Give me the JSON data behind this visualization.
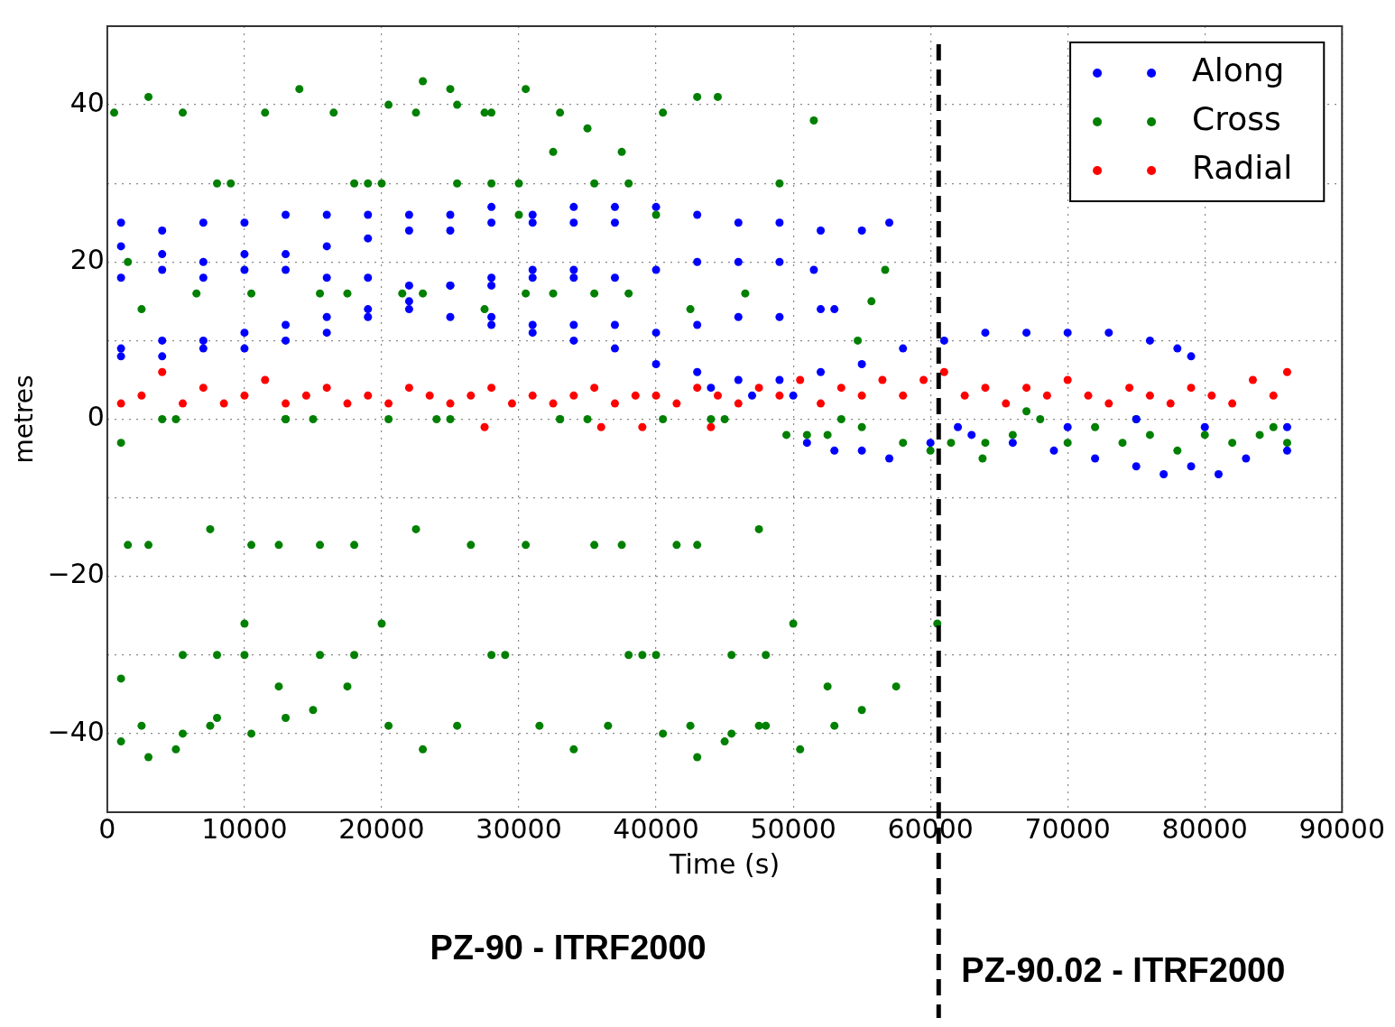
{
  "chart_data": {
    "type": "scatter",
    "xlabel": "Time (s)",
    "ylabel": "metres",
    "xlim": [
      0,
      90000
    ],
    "xticks": [
      0,
      10000,
      20000,
      30000,
      40000,
      50000,
      60000,
      70000,
      80000,
      90000
    ],
    "ylim": [
      -50,
      50
    ],
    "yticks": [
      {
        "value": -50,
        "label": null
      },
      -40,
      {
        "value": -30,
        "label": null
      },
      -20,
      {
        "value": -10,
        "label": null
      },
      0,
      {
        "value": 10,
        "label": null
      },
      20,
      {
        "value": 30,
        "label": null
      },
      40,
      {
        "value": 50,
        "label": null
      }
    ],
    "grid": true,
    "legend": "top right",
    "marker": "circle",
    "ref_lines": [
      {
        "axis": "x",
        "value": 60600,
        "color": "#000000",
        "line_style": "dashed"
      }
    ],
    "annotations": [
      "PZ-90 - ITRF2000",
      "PZ-90.02 - ITRF2000"
    ],
    "series": [
      {
        "name": "Along",
        "color": "#0000ff",
        "x": [
          1000,
          4000,
          7000,
          10000,
          13000,
          16000,
          19000,
          22000,
          25000,
          28000,
          31000,
          34000,
          37000,
          40000,
          43000,
          46000,
          49000,
          52000,
          55000,
          57000,
          1000,
          4000,
          7000,
          10000,
          13000,
          16000,
          19000,
          22000,
          25000,
          28000,
          31000,
          34000,
          37000,
          1000,
          4000,
          7000,
          10000,
          13000,
          16000,
          19000,
          22000,
          25000,
          28000,
          31000,
          34000,
          37000,
          40000,
          43000,
          46000,
          49000,
          51500,
          1000,
          4000,
          7000,
          10000,
          13000,
          16000,
          19000,
          22000,
          25000,
          28000,
          31000,
          34000,
          1000,
          4000,
          7000,
          10000,
          13000,
          16000,
          19000,
          22000,
          25000,
          28000,
          31000,
          34000,
          37000,
          40000,
          43000,
          46000,
          49000,
          52000,
          53000,
          28000,
          31000,
          34000,
          37000,
          40000,
          43000,
          46000,
          49000,
          52000,
          55000,
          58000,
          61000,
          64000,
          67000,
          70000,
          73000,
          76000,
          78000,
          79000,
          44000,
          47000,
          50000,
          51000,
          53000,
          55000,
          57000,
          60000,
          63000,
          66000,
          69000,
          72000,
          75000,
          77000,
          79000,
          81000,
          83000,
          86000,
          62000,
          70000,
          75000,
          80000,
          86000
        ],
        "values": [
          25,
          24,
          25,
          25,
          26,
          26,
          26,
          26,
          26,
          27,
          26,
          27,
          27,
          27,
          26,
          25,
          25,
          24,
          24,
          25,
          22,
          21,
          20,
          21,
          21,
          22,
          23,
          24,
          24,
          25,
          25,
          25,
          25,
          18,
          19,
          18,
          19,
          19,
          18,
          18,
          17,
          17,
          17,
          18,
          18,
          18,
          19,
          20,
          20,
          20,
          19,
          9,
          10,
          10,
          11,
          12,
          13,
          14,
          15,
          17,
          18,
          19,
          19,
          8,
          8,
          9,
          9,
          10,
          11,
          13,
          14,
          13,
          12,
          12,
          12,
          12,
          11,
          12,
          13,
          13,
          14,
          14,
          13,
          11,
          10,
          9,
          7,
          6,
          5,
          5,
          6,
          7,
          9,
          10,
          11,
          11,
          11,
          11,
          10,
          9,
          8,
          4,
          3,
          3,
          -3,
          -4,
          -4,
          -5,
          -3,
          -2,
          -3,
          -4,
          -5,
          -6,
          -7,
          -6,
          -7,
          -5,
          -4,
          -1,
          -1,
          0,
          -1,
          -1
        ]
      },
      {
        "name": "Cross",
        "color": "#008000",
        "x": [
          500,
          3000,
          5500,
          8000,
          10500,
          13000,
          15500,
          18000,
          20500,
          23000,
          25500,
          28000,
          30500,
          33000,
          35500,
          38000,
          40500,
          43000,
          44500,
          1000,
          3000,
          5500,
          8000,
          10500,
          13000,
          15500,
          18000,
          20500,
          23000,
          25500,
          28000,
          30500,
          33000,
          35500,
          38000,
          40500,
          43000,
          45500,
          48000,
          1500,
          4000,
          6500,
          9000,
          11500,
          14000,
          16500,
          19000,
          21500,
          24000,
          26500,
          29000,
          31500,
          34000,
          36500,
          39000,
          41500,
          44000,
          46500,
          49000,
          51500,
          1000,
          2500,
          5000,
          7500,
          10000,
          12500,
          15000,
          17500,
          20000,
          22500,
          25000,
          27500,
          30000,
          32500,
          35000,
          37500,
          40000,
          42500,
          45000,
          47500,
          1000,
          3000,
          5500,
          8000,
          10500,
          13000,
          15500,
          18000,
          20500,
          23000,
          25500,
          28000,
          30500,
          33000,
          35500,
          38000,
          40500,
          43000,
          45500,
          48000,
          50500,
          53000,
          1500,
          2500,
          5000,
          7500,
          10000,
          12500,
          15000,
          17500,
          20000,
          22500,
          25000,
          27500,
          30000,
          32500,
          35000,
          37500,
          40000,
          42500,
          45000,
          47500,
          50000,
          52500,
          55000,
          57500,
          60500,
          49500,
          51000,
          52500,
          53500,
          54700,
          55700,
          56700,
          55000,
          58000,
          60000,
          61500,
          63800,
          64000,
          66000,
          67000,
          68000,
          70000,
          72000,
          74000,
          75000,
          76000,
          78000,
          80000,
          82000,
          84000,
          85000,
          86000
        ],
        "values": [
          39,
          41,
          39,
          30,
          16,
          0,
          -16,
          -30,
          -39,
          -42,
          -39,
          -30,
          -16,
          0,
          16,
          30,
          39,
          41,
          41,
          -41,
          -43,
          -40,
          -30,
          -16,
          0,
          16,
          30,
          40,
          43,
          40,
          30,
          16,
          0,
          -16,
          -30,
          -40,
          -43,
          -40,
          -30,
          -16,
          0,
          16,
          30,
          39,
          42,
          39,
          30,
          16,
          0,
          -16,
          -30,
          -39,
          -42,
          -39,
          -30,
          -16,
          0,
          16,
          30,
          38,
          -33,
          -39,
          -42,
          -39,
          -30,
          -16,
          0,
          16,
          30,
          39,
          42,
          39,
          30,
          16,
          0,
          -16,
          -30,
          -39,
          -41,
          -39,
          -3,
          -16,
          -30,
          -38,
          -40,
          -38,
          -30,
          -16,
          0,
          16,
          30,
          39,
          42,
          39,
          30,
          16,
          0,
          -16,
          -30,
          -39,
          -42,
          -39,
          20,
          14,
          0,
          -14,
          -26,
          -34,
          -37,
          -34,
          -26,
          -14,
          0,
          14,
          26,
          34,
          37,
          34,
          26,
          14,
          0,
          -14,
          -26,
          -34,
          -37,
          -34,
          -26,
          -2,
          -2,
          -2,
          0,
          10,
          15,
          19,
          -1,
          -3,
          -4,
          -3,
          -5,
          -3,
          -2,
          1,
          0,
          -3,
          -1,
          -3,
          0,
          -2,
          -4,
          -2,
          -3,
          -2,
          -1,
          -3
        ]
      },
      {
        "name": "Radial",
        "color": "#ff0000",
        "x": [
          1000,
          2500,
          4000,
          5500,
          7000,
          8500,
          10000,
          11500,
          13000,
          14500,
          16000,
          17500,
          19000,
          20500,
          22000,
          23500,
          25000,
          26500,
          28000,
          29500,
          31000,
          32500,
          34000,
          35500,
          37000,
          38500,
          40000,
          41500,
          43000,
          44500,
          46000,
          47500,
          49000,
          50500,
          52000,
          53500,
          55000,
          56500,
          58000,
          59500,
          61000,
          62500,
          64000,
          65500,
          67000,
          68500,
          70000,
          71500,
          73000,
          74500,
          76000,
          77500,
          79000,
          80500,
          82000,
          83500,
          85000,
          86000,
          27500,
          36000,
          39000,
          44000
        ],
        "values": [
          2,
          3,
          6,
          2,
          4,
          2,
          3,
          5,
          2,
          3,
          4,
          2,
          3,
          2,
          4,
          3,
          2,
          3,
          4,
          2,
          3,
          2,
          3,
          4,
          2,
          3,
          3,
          2,
          4,
          3,
          2,
          4,
          3,
          5,
          2,
          4,
          3,
          5,
          3,
          5,
          6,
          3,
          4,
          2,
          4,
          3,
          5,
          3,
          2,
          4,
          3,
          2,
          4,
          3,
          2,
          5,
          3,
          6,
          -1,
          -1,
          -1,
          -1
        ]
      }
    ]
  }
}
